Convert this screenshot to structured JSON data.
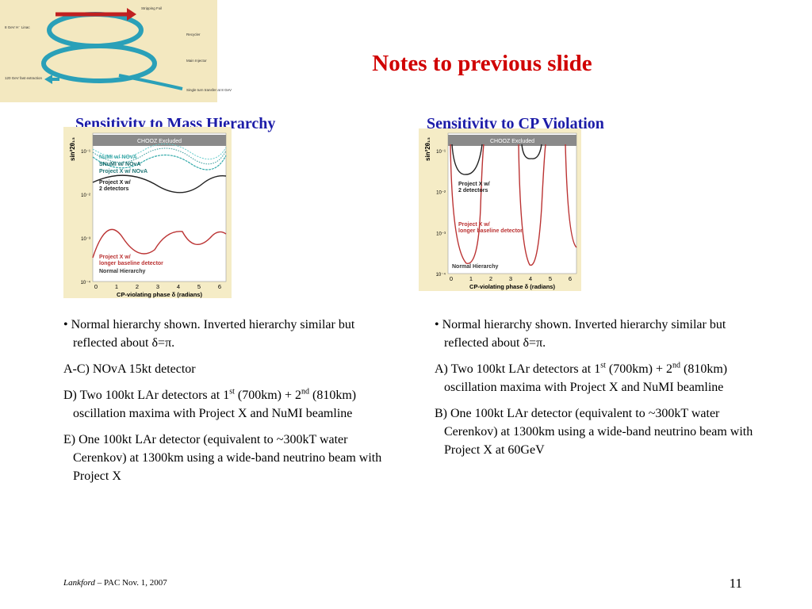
{
  "header": {
    "title": "Notes to previous slide"
  },
  "diagram": {
    "labels": [
      "Stripping Foil",
      "8 GeV H⁻ Linac",
      "Recycler",
      "Main Injector",
      "120 GeV fast extraction",
      "Single turn transfer at 8 GeV"
    ]
  },
  "left": {
    "heading": "Sensitivity to Mass Hierarchy",
    "figure": {
      "ylabel": "sin²2θ₁₃",
      "band": "CHOOZ Excluded",
      "yticks": [
        "10⁻¹",
        "10⁻²",
        "10⁻³",
        "10⁻⁴"
      ],
      "xticks": [
        "0",
        "1",
        "2",
        "3",
        "4",
        "5",
        "6"
      ],
      "xlabel": "CP-violating phase δ (radians)",
      "legend": [
        "NuMI w/ NOvA",
        "SNuMI w/ NOvA",
        "Project X w/ NOvA",
        "Project X w/",
        "2 detectors",
        "Project X w/",
        "longer baseline detector",
        "Normal Hierarchy"
      ]
    },
    "notes": [
      [
        "• Normal hierarchy shown. Inverted hierarchy similar but reflected about δ=π."
      ],
      [
        "A-C) NOvA 15kt detector"
      ],
      [
        "D) Two 100kt LAr detectors at 1",
        "st",
        " (700km) + 2",
        "nd",
        " (810km) oscillation maxima with Project X and NuMI beamline"
      ],
      [
        "E) One 100kt LAr detector (equivalent to ~300kT water Cerenkov) at 1300km using a wide-band neutrino beam with Project X"
      ]
    ]
  },
  "right": {
    "heading": "Sensitivity to CP Violation",
    "figure": {
      "ylabel": "sin²2θ₁₃",
      "band": "CHOOZ Excluded",
      "yticks": [
        "10⁻¹",
        "10⁻²",
        "10⁻³",
        "10⁻⁴"
      ],
      "xticks": [
        "0",
        "1",
        "2",
        "3",
        "4",
        "5",
        "6"
      ],
      "xlabel": "CP-violating phase δ (radians)",
      "legend": [
        "Project X w/",
        "2 detectors",
        "Project X w/",
        "longer baseline detector",
        "Normal Hierarchy"
      ]
    },
    "notes": [
      [
        "• Normal hierarchy shown. Inverted hierarchy similar but reflected about δ=π."
      ],
      [
        "A) Two 100kt LAr detectors at 1",
        "st",
        " (700km) + 2",
        "nd",
        " (810km) oscillation maxima with Project X and NuMI beamline"
      ],
      [
        "B) One 100kt LAr detector (equivalent to ~300kT water Cerenkov) at 1300km using a wide-band neutrino beam with Project X at 60GeV"
      ]
    ]
  },
  "footer": {
    "author": "Lankford",
    "rest": " – PAC Nov. 1, 2007",
    "page": "11"
  }
}
